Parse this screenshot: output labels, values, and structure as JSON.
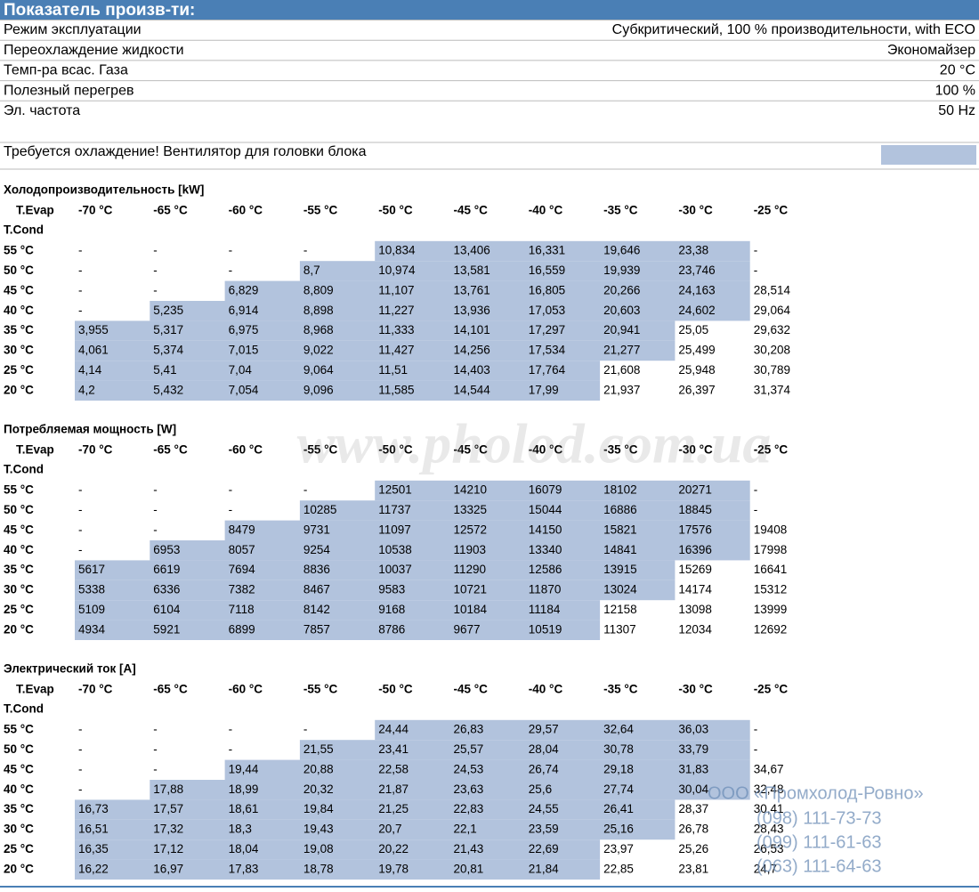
{
  "header": {
    "title": "Показатель произв-ти:"
  },
  "params": [
    [
      "Режим эксплуатации",
      "Субкритический, 100 % производительности, with ECO"
    ],
    [
      "Переохлаждение жидкости",
      "Экономайзер"
    ],
    [
      "Темп-ра всас. Газа",
      "20 °C"
    ],
    [
      "Полезный перегрев",
      "100 %"
    ],
    [
      "Эл. частота",
      "50 Hz"
    ]
  ],
  "note": "Требуется охлаждение! Вентилятор для головки блока",
  "tables": [
    {
      "title": "Холодопроизводительность [kW]",
      "evap_label": "T.Evap",
      "cond_label": "T.Cond",
      "columns": [
        "-70 °C",
        "-65 °C",
        "-60 °C",
        "-55 °C",
        "-50 °C",
        "-45 °C",
        "-40 °C",
        "-35 °C",
        "-30 °C",
        "-25 °C"
      ],
      "rows": [
        {
          "cond": "55 °C",
          "cells": [
            "-",
            "-",
            "-",
            "-",
            "10,834",
            "13,406",
            "16,331",
            "19,646",
            "23,38",
            "-"
          ]
        },
        {
          "cond": "50 °C",
          "cells": [
            "-",
            "-",
            "-",
            "8,7",
            "10,974",
            "13,581",
            "16,559",
            "19,939",
            "23,746",
            "-"
          ]
        },
        {
          "cond": "45 °C",
          "cells": [
            "-",
            "-",
            "6,829",
            "8,809",
            "11,107",
            "13,761",
            "16,805",
            "20,266",
            "24,163",
            "28,514"
          ]
        },
        {
          "cond": "40 °C",
          "cells": [
            "-",
            "5,235",
            "6,914",
            "8,898",
            "11,227",
            "13,936",
            "17,053",
            "20,603",
            "24,602",
            "29,064"
          ]
        },
        {
          "cond": "35 °C",
          "cells": [
            "3,955",
            "5,317",
            "6,975",
            "8,968",
            "11,333",
            "14,101",
            "17,297",
            "20,941",
            "25,05",
            "29,632"
          ]
        },
        {
          "cond": "30 °C",
          "cells": [
            "4,061",
            "5,374",
            "7,015",
            "9,022",
            "11,427",
            "14,256",
            "17,534",
            "21,277",
            "25,499",
            "30,208"
          ]
        },
        {
          "cond": "25 °C",
          "cells": [
            "4,14",
            "5,41",
            "7,04",
            "9,064",
            "11,51",
            "14,403",
            "17,764",
            "21,608",
            "25,948",
            "30,789"
          ]
        },
        {
          "cond": "20 °C",
          "cells": [
            "4,2",
            "5,432",
            "7,054",
            "9,096",
            "11,585",
            "14,544",
            "17,99",
            "21,937",
            "26,397",
            "31,374"
          ]
        }
      ]
    },
    {
      "title": "Потребляемая мощность [W]",
      "evap_label": "T.Evap",
      "cond_label": "T.Cond",
      "columns": [
        "-70 °C",
        "-65 °C",
        "-60 °C",
        "-55 °C",
        "-50 °C",
        "-45 °C",
        "-40 °C",
        "-35 °C",
        "-30 °C",
        "-25 °C"
      ],
      "rows": [
        {
          "cond": "55 °C",
          "cells": [
            "-",
            "-",
            "-",
            "-",
            "12501",
            "14210",
            "16079",
            "18102",
            "20271",
            "-"
          ]
        },
        {
          "cond": "50 °C",
          "cells": [
            "-",
            "-",
            "-",
            "10285",
            "11737",
            "13325",
            "15044",
            "16886",
            "18845",
            "-"
          ]
        },
        {
          "cond": "45 °C",
          "cells": [
            "-",
            "-",
            "8479",
            "9731",
            "11097",
            "12572",
            "14150",
            "15821",
            "17576",
            "19408"
          ]
        },
        {
          "cond": "40 °C",
          "cells": [
            "-",
            "6953",
            "8057",
            "9254",
            "10538",
            "11903",
            "13340",
            "14841",
            "16396",
            "17998"
          ]
        },
        {
          "cond": "35 °C",
          "cells": [
            "5617",
            "6619",
            "7694",
            "8836",
            "10037",
            "11290",
            "12586",
            "13915",
            "15269",
            "16641"
          ]
        },
        {
          "cond": "30 °C",
          "cells": [
            "5338",
            "6336",
            "7382",
            "8467",
            "9583",
            "10721",
            "11870",
            "13024",
            "14174",
            "15312"
          ]
        },
        {
          "cond": "25 °C",
          "cells": [
            "5109",
            "6104",
            "7118",
            "8142",
            "9168",
            "10184",
            "11184",
            "12158",
            "13098",
            "13999"
          ]
        },
        {
          "cond": "20 °C",
          "cells": [
            "4934",
            "5921",
            "6899",
            "7857",
            "8786",
            "9677",
            "10519",
            "11307",
            "12034",
            "12692"
          ]
        }
      ]
    },
    {
      "title": "Электрический ток [A]",
      "evap_label": "T.Evap",
      "cond_label": "T.Cond",
      "columns": [
        "-70 °C",
        "-65 °C",
        "-60 °C",
        "-55 °C",
        "-50 °C",
        "-45 °C",
        "-40 °C",
        "-35 °C",
        "-30 °C",
        "-25 °C"
      ],
      "rows": [
        {
          "cond": "55 °C",
          "cells": [
            "-",
            "-",
            "-",
            "-",
            "24,44",
            "26,83",
            "29,57",
            "32,64",
            "36,03",
            "-"
          ]
        },
        {
          "cond": "50 °C",
          "cells": [
            "-",
            "-",
            "-",
            "21,55",
            "23,41",
            "25,57",
            "28,04",
            "30,78",
            "33,79",
            "-"
          ]
        },
        {
          "cond": "45 °C",
          "cells": [
            "-",
            "-",
            "19,44",
            "20,88",
            "22,58",
            "24,53",
            "26,74",
            "29,18",
            "31,83",
            "34,67"
          ]
        },
        {
          "cond": "40 °C",
          "cells": [
            "-",
            "17,88",
            "18,99",
            "20,32",
            "21,87",
            "23,63",
            "25,6",
            "27,74",
            "30,04",
            "32,48"
          ]
        },
        {
          "cond": "35 °C",
          "cells": [
            "16,73",
            "17,57",
            "18,61",
            "19,84",
            "21,25",
            "22,83",
            "24,55",
            "26,41",
            "28,37",
            "30,41"
          ]
        },
        {
          "cond": "30 °C",
          "cells": [
            "16,51",
            "17,32",
            "18,3",
            "19,43",
            "20,7",
            "22,1",
            "23,59",
            "25,16",
            "26,78",
            "28,43"
          ]
        },
        {
          "cond": "25 °C",
          "cells": [
            "16,35",
            "17,12",
            "18,04",
            "19,08",
            "20,22",
            "21,43",
            "22,69",
            "23,97",
            "25,26",
            "26,53"
          ]
        },
        {
          "cond": "20 °C",
          "cells": [
            "16,22",
            "16,97",
            "17,83",
            "18,78",
            "19,78",
            "20,81",
            "21,84",
            "22,85",
            "23,81",
            "24,7"
          ]
        }
      ]
    }
  ],
  "watermark": {
    "site": "www.pholod.com.ua",
    "company": "ООО «Промхолод-Ровно»",
    "phones": [
      "(098) 111-73-73",
      "(099) 111-61-63",
      "(063) 111-64-63"
    ]
  }
}
